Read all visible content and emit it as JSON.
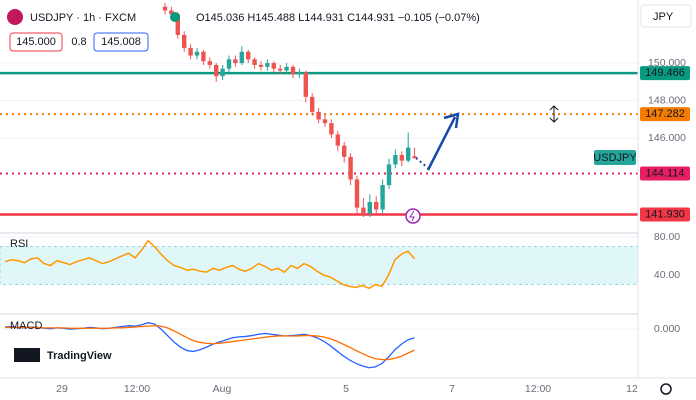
{
  "header": {
    "symbol": "USDJPY · 1h · FXCM",
    "ohlc": "O145.036 H145.488 L144.931 C144.931 −0.105 (−0.07%)",
    "sell": "145.000",
    "spread": "0.8",
    "buy": "145.008",
    "currency": "JPY"
  },
  "chart_data": {
    "type": "candlestick",
    "up_color": "#26a69a",
    "down_color": "#ef5350",
    "candles": [
      [
        153.0,
        153.2,
        152.6,
        152.8
      ],
      [
        152.8,
        153.0,
        152.4,
        152.6
      ],
      [
        152.6,
        152.7,
        151.3,
        151.5
      ],
      [
        151.5,
        151.7,
        150.6,
        150.8
      ],
      [
        150.8,
        151.0,
        150.2,
        150.4
      ],
      [
        150.4,
        150.8,
        150.2,
        150.6
      ],
      [
        150.6,
        150.7,
        149.9,
        150.1
      ],
      [
        150.1,
        150.3,
        149.7,
        149.9
      ],
      [
        149.9,
        150.0,
        149.0,
        149.3
      ],
      [
        149.3,
        149.9,
        149.1,
        149.7
      ],
      [
        149.7,
        150.4,
        149.5,
        150.2
      ],
      [
        150.2,
        150.4,
        149.8,
        150.0
      ],
      [
        150.0,
        150.9,
        149.9,
        150.6
      ],
      [
        150.6,
        150.7,
        150.0,
        150.2
      ],
      [
        150.2,
        150.3,
        149.7,
        149.9
      ],
      [
        149.9,
        150.1,
        149.6,
        149.8
      ],
      [
        149.8,
        150.2,
        149.6,
        150.0
      ],
      [
        150.0,
        150.1,
        149.5,
        149.7
      ],
      [
        149.7,
        149.9,
        149.4,
        149.6
      ],
      [
        149.6,
        150.0,
        149.4,
        149.8
      ],
      [
        149.8,
        149.9,
        149.2,
        149.4
      ],
      [
        149.4,
        149.7,
        149.2,
        149.5
      ],
      [
        149.5,
        149.6,
        147.9,
        148.2
      ],
      [
        148.2,
        148.4,
        147.2,
        147.4
      ],
      [
        147.4,
        147.6,
        146.8,
        147.0
      ],
      [
        147.0,
        147.3,
        146.6,
        146.8
      ],
      [
        146.8,
        147.0,
        146.0,
        146.2
      ],
      [
        146.2,
        146.4,
        145.3,
        145.6
      ],
      [
        145.6,
        145.8,
        144.7,
        145.0
      ],
      [
        145.0,
        145.2,
        143.5,
        143.8
      ],
      [
        143.8,
        144.0,
        142.0,
        142.3
      ],
      [
        142.3,
        142.8,
        141.8,
        142.0
      ],
      [
        142.0,
        143.0,
        141.8,
        142.6
      ],
      [
        142.6,
        142.9,
        141.9,
        142.2
      ],
      [
        142.2,
        143.8,
        142.0,
        143.5
      ],
      [
        143.5,
        144.9,
        143.3,
        144.6
      ],
      [
        144.6,
        145.4,
        144.4,
        145.1
      ],
      [
        145.1,
        145.3,
        144.5,
        144.8
      ],
      [
        144.8,
        146.3,
        144.7,
        145.5
      ],
      [
        145.036,
        145.488,
        144.931,
        144.931
      ]
    ],
    "ylim": [
      141.0,
      153.36
    ],
    "yticks": [
      {
        "value": 150,
        "label": "150.000"
      },
      {
        "value": 148,
        "label": "148.000"
      },
      {
        "value": 146,
        "label": "146.000"
      }
    ],
    "levels": {
      "values": [
        149.466,
        147.282,
        144.114,
        141.93
      ],
      "value_labels": [
        "149.466",
        "147.282",
        "144.114",
        "141.930"
      ],
      "colors": [
        "#089981",
        "#f57c00",
        "#e91e63",
        "#f23645"
      ],
      "styles": [
        "solid",
        "dotted",
        "dotted",
        "solid"
      ]
    },
    "symbol_label": "USDJPY",
    "x_labels": [
      "29",
      "12:00",
      "Aug",
      "5",
      "7",
      "12:00",
      "12"
    ]
  },
  "rsi": {
    "title": "RSI",
    "color": "#ff9800",
    "ylim": [
      0,
      84.2
    ],
    "band": [
      30,
      70
    ],
    "yticks": [
      {
        "value": 80,
        "label": "80.00"
      },
      {
        "value": 40,
        "label": "40.00"
      }
    ],
    "values": [
      54,
      56,
      55,
      53,
      57,
      58,
      52,
      50,
      55,
      53,
      51,
      54,
      56,
      58,
      55,
      52,
      54,
      57,
      60,
      63,
      58,
      66,
      76,
      70,
      62,
      55,
      50,
      48,
      45,
      46,
      44,
      43,
      47,
      45,
      48,
      50,
      46,
      44,
      47,
      52,
      49,
      45,
      47,
      43,
      50,
      47,
      52,
      49,
      44,
      40,
      38,
      34,
      30,
      28,
      27,
      29,
      26,
      30,
      28,
      40,
      56,
      62,
      65,
      57
    ]
  },
  "macd": {
    "title": "MACD",
    "ylim": [
      -1.14,
      0.33
    ],
    "yticks": [
      {
        "value": 0,
        "label": "0.000"
      }
    ],
    "macd": [
      0.05,
      0.06,
      0.04,
      0.03,
      0.05,
      0.04,
      0.02,
      0.01,
      0.03,
      0.02,
      0.0,
      0.01,
      0.02,
      0.04,
      0.03,
      0.01,
      0.02,
      0.04,
      0.06,
      0.08,
      0.07,
      0.1,
      0.15,
      0.12,
      0.0,
      -0.15,
      -0.3,
      -0.42,
      -0.5,
      -0.52,
      -0.48,
      -0.42,
      -0.35,
      -0.3,
      -0.25,
      -0.2,
      -0.18,
      -0.17,
      -0.15,
      -0.12,
      -0.1,
      -0.12,
      -0.14,
      -0.16,
      -0.15,
      -0.14,
      -0.12,
      -0.15,
      -0.2,
      -0.28,
      -0.38,
      -0.5,
      -0.62,
      -0.72,
      -0.8,
      -0.86,
      -0.9,
      -0.88,
      -0.8,
      -0.65,
      -0.48,
      -0.35,
      -0.25,
      -0.2
    ],
    "signal": [
      0.04,
      0.04,
      0.04,
      0.04,
      0.04,
      0.04,
      0.03,
      0.03,
      0.03,
      0.03,
      0.02,
      0.02,
      0.02,
      0.02,
      0.02,
      0.02,
      0.02,
      0.03,
      0.03,
      0.04,
      0.05,
      0.06,
      0.07,
      0.08,
      0.07,
      0.03,
      -0.04,
      -0.12,
      -0.2,
      -0.27,
      -0.31,
      -0.33,
      -0.34,
      -0.33,
      -0.31,
      -0.29,
      -0.27,
      -0.25,
      -0.23,
      -0.21,
      -0.19,
      -0.17,
      -0.16,
      -0.16,
      -0.16,
      -0.16,
      -0.15,
      -0.15,
      -0.16,
      -0.18,
      -0.22,
      -0.28,
      -0.35,
      -0.42,
      -0.5,
      -0.57,
      -0.64,
      -0.69,
      -0.71,
      -0.71,
      -0.68,
      -0.63,
      -0.56,
      -0.49
    ],
    "macd_color": "#2962ff",
    "signal_color": "#ff6d00"
  },
  "watermark": "TradingView"
}
